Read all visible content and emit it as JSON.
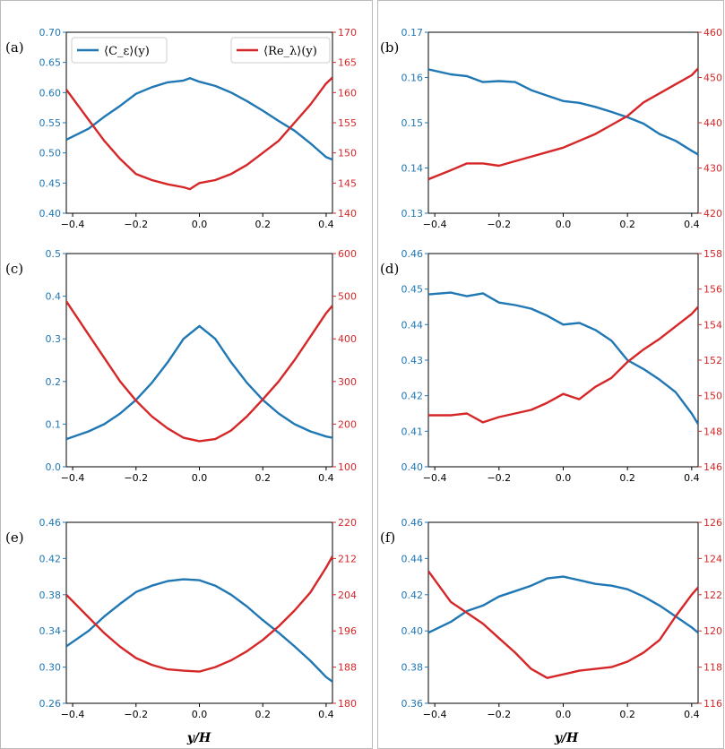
{
  "colors": {
    "left_axis": "#1f77b4",
    "right_axis": "#d62728",
    "frame": "#000000",
    "column_border": "#bbbbbb"
  },
  "legend": {
    "placement": "top",
    "entries": [
      {
        "label": "⟨C_ε⟩(y)",
        "color": "#1f77b4"
      },
      {
        "label": "⟨Re_λ⟩(y)",
        "color": "#d62728"
      }
    ]
  },
  "xlabel": "y/H",
  "chart_data": [
    {
      "type": "line",
      "panel": "(a)",
      "xlim": [
        -0.42,
        0.42
      ],
      "xticks": [
        -0.4,
        -0.2,
        0.0,
        0.2,
        0.4
      ],
      "ylim_left": [
        0.4,
        0.7
      ],
      "yticks_left": [
        0.4,
        0.45,
        0.5,
        0.55,
        0.6,
        0.65,
        0.7
      ],
      "ylim_right": [
        140,
        170
      ],
      "yticks_right": [
        140,
        145,
        150,
        155,
        160,
        165,
        170
      ],
      "series": [
        {
          "name": "⟨C_ε⟩(y)",
          "axis": "left",
          "x": [
            -0.42,
            -0.35,
            -0.3,
            -0.25,
            -0.2,
            -0.15,
            -0.1,
            -0.05,
            -0.03,
            0.0,
            0.05,
            0.1,
            0.15,
            0.2,
            0.25,
            0.3,
            0.35,
            0.4,
            0.42
          ],
          "y": [
            0.522,
            0.54,
            0.56,
            0.578,
            0.598,
            0.609,
            0.617,
            0.62,
            0.624,
            0.618,
            0.611,
            0.6,
            0.586,
            0.57,
            0.553,
            0.537,
            0.516,
            0.493,
            0.489
          ]
        },
        {
          "name": "⟨Re_λ⟩(y)",
          "axis": "right",
          "x": [
            -0.42,
            -0.35,
            -0.3,
            -0.25,
            -0.2,
            -0.15,
            -0.1,
            -0.05,
            -0.03,
            0.0,
            0.05,
            0.1,
            0.15,
            0.2,
            0.25,
            0.3,
            0.35,
            0.4,
            0.42
          ],
          "y": [
            160.5,
            155.5,
            152.0,
            149.0,
            146.5,
            145.5,
            144.8,
            144.3,
            144.0,
            145.0,
            145.5,
            146.5,
            148.0,
            150.0,
            152.0,
            155.0,
            158.0,
            161.5,
            162.5
          ]
        }
      ]
    },
    {
      "type": "line",
      "panel": "(b)",
      "xlim": [
        -0.42,
        0.42
      ],
      "xticks": [
        -0.4,
        -0.2,
        0.0,
        0.2,
        0.4
      ],
      "ylim_left": [
        0.13,
        0.17
      ],
      "yticks_left": [
        0.13,
        0.14,
        0.15,
        0.16,
        0.17
      ],
      "ylim_right": [
        420,
        460
      ],
      "yticks_right": [
        420,
        430,
        440,
        450,
        460
      ],
      "series": [
        {
          "name": "⟨C_ε⟩(y)",
          "axis": "left",
          "x": [
            -0.42,
            -0.35,
            -0.3,
            -0.25,
            -0.2,
            -0.15,
            -0.1,
            -0.05,
            0.0,
            0.05,
            0.1,
            0.15,
            0.2,
            0.25,
            0.3,
            0.35,
            0.4,
            0.42
          ],
          "y": [
            0.1618,
            0.1607,
            0.1603,
            0.159,
            0.1592,
            0.159,
            0.1572,
            0.156,
            0.1548,
            0.1544,
            0.1535,
            0.1524,
            0.1512,
            0.1498,
            0.1475,
            0.146,
            0.1438,
            0.143
          ]
        },
        {
          "name": "⟨Re_λ⟩(y)",
          "axis": "right",
          "x": [
            -0.42,
            -0.35,
            -0.3,
            -0.25,
            -0.2,
            -0.15,
            -0.1,
            -0.05,
            0.0,
            0.05,
            0.1,
            0.15,
            0.2,
            0.25,
            0.3,
            0.35,
            0.4,
            0.42
          ],
          "y": [
            427.5,
            429.5,
            431.0,
            431.0,
            430.5,
            431.5,
            432.5,
            433.5,
            434.5,
            436.0,
            437.5,
            439.5,
            441.5,
            444.5,
            446.5,
            448.5,
            450.5,
            452.0
          ]
        }
      ]
    },
    {
      "type": "line",
      "panel": "(c)",
      "xlim": [
        -0.42,
        0.42
      ],
      "xticks": [
        -0.4,
        -0.2,
        0.0,
        0.2,
        0.4
      ],
      "ylim_left": [
        0.0,
        0.5
      ],
      "yticks_left": [
        0.0,
        0.1,
        0.2,
        0.3,
        0.4,
        0.5
      ],
      "ylim_right": [
        100,
        600
      ],
      "yticks_right": [
        100,
        200,
        300,
        400,
        500,
        600
      ],
      "series": [
        {
          "name": "⟨C_ε⟩(y)",
          "axis": "left",
          "x": [
            -0.42,
            -0.35,
            -0.3,
            -0.25,
            -0.2,
            -0.15,
            -0.1,
            -0.05,
            0.0,
            0.05,
            0.1,
            0.15,
            0.2,
            0.25,
            0.3,
            0.35,
            0.4,
            0.42
          ],
          "y": [
            0.065,
            0.083,
            0.1,
            0.125,
            0.157,
            0.197,
            0.245,
            0.3,
            0.33,
            0.3,
            0.245,
            0.197,
            0.157,
            0.125,
            0.1,
            0.083,
            0.071,
            0.068
          ]
        },
        {
          "name": "⟨Re_λ⟩(y)",
          "axis": "right",
          "x": [
            -0.42,
            -0.35,
            -0.3,
            -0.25,
            -0.2,
            -0.15,
            -0.1,
            -0.05,
            0.0,
            0.05,
            0.1,
            0.15,
            0.2,
            0.25,
            0.3,
            0.35,
            0.4,
            0.42
          ],
          "y": [
            488,
            410,
            355,
            300,
            255,
            218,
            190,
            168,
            160,
            165,
            185,
            218,
            258,
            300,
            350,
            405,
            460,
            478
          ]
        }
      ]
    },
    {
      "type": "line",
      "panel": "(d)",
      "xlim": [
        -0.42,
        0.42
      ],
      "xticks": [
        -0.4,
        -0.2,
        0.0,
        0.2,
        0.4
      ],
      "ylim_left": [
        0.4,
        0.46
      ],
      "yticks_left": [
        0.4,
        0.41,
        0.42,
        0.43,
        0.44,
        0.45,
        0.46
      ],
      "ylim_right": [
        146,
        158
      ],
      "yticks_right": [
        146,
        148,
        150,
        152,
        154,
        156,
        158
      ],
      "series": [
        {
          "name": "⟨C_ε⟩(y)",
          "axis": "left",
          "x": [
            -0.42,
            -0.35,
            -0.3,
            -0.25,
            -0.2,
            -0.15,
            -0.1,
            -0.05,
            0.0,
            0.05,
            0.1,
            0.15,
            0.2,
            0.25,
            0.3,
            0.35,
            0.4,
            0.42
          ],
          "y": [
            0.4485,
            0.449,
            0.448,
            0.4488,
            0.4462,
            0.4455,
            0.4445,
            0.4425,
            0.44,
            0.4405,
            0.4385,
            0.4355,
            0.43,
            0.4275,
            0.4245,
            0.421,
            0.415,
            0.412
          ]
        },
        {
          "name": "⟨Re_λ⟩(y)",
          "axis": "right",
          "x": [
            -0.42,
            -0.35,
            -0.3,
            -0.25,
            -0.2,
            -0.15,
            -0.1,
            -0.05,
            0.0,
            0.05,
            0.1,
            0.15,
            0.2,
            0.25,
            0.3,
            0.35,
            0.4,
            0.42
          ],
          "y": [
            148.9,
            148.9,
            149.0,
            148.5,
            148.8,
            149.0,
            149.2,
            149.6,
            150.1,
            149.8,
            150.5,
            151.0,
            151.9,
            152.6,
            153.2,
            153.9,
            154.6,
            155.0
          ]
        }
      ]
    },
    {
      "type": "line",
      "panel": "(e)",
      "xlim": [
        -0.42,
        0.42
      ],
      "xticks": [
        -0.4,
        -0.2,
        0.0,
        0.2,
        0.4
      ],
      "ylim_left": [
        0.26,
        0.46
      ],
      "yticks_left": [
        0.26,
        0.3,
        0.34,
        0.38,
        0.42,
        0.46
      ],
      "ylim_right": [
        180,
        220
      ],
      "yticks_right": [
        180,
        188,
        196,
        204,
        212,
        220
      ],
      "series": [
        {
          "name": "⟨C_ε⟩(y)",
          "axis": "left",
          "x": [
            -0.42,
            -0.35,
            -0.3,
            -0.25,
            -0.2,
            -0.15,
            -0.1,
            -0.05,
            0.0,
            0.05,
            0.1,
            0.15,
            0.2,
            0.25,
            0.3,
            0.35,
            0.4,
            0.42
          ],
          "y": [
            0.323,
            0.34,
            0.356,
            0.37,
            0.383,
            0.39,
            0.395,
            0.397,
            0.396,
            0.39,
            0.38,
            0.367,
            0.352,
            0.338,
            0.323,
            0.307,
            0.289,
            0.284
          ]
        },
        {
          "name": "⟨Re_λ⟩(y)",
          "axis": "right",
          "x": [
            -0.42,
            -0.35,
            -0.3,
            -0.25,
            -0.2,
            -0.15,
            -0.1,
            -0.05,
            0.0,
            0.05,
            0.1,
            0.15,
            0.2,
            0.25,
            0.3,
            0.35,
            0.4,
            0.42
          ],
          "y": [
            204.0,
            199.0,
            195.5,
            192.5,
            190.0,
            188.5,
            187.5,
            187.2,
            187.0,
            188.0,
            189.5,
            191.5,
            194.0,
            197.0,
            200.5,
            204.5,
            210.0,
            212.5
          ]
        }
      ]
    },
    {
      "type": "line",
      "panel": "(f)",
      "xlim": [
        -0.42,
        0.42
      ],
      "xticks": [
        -0.4,
        -0.2,
        0.0,
        0.2,
        0.4
      ],
      "ylim_left": [
        0.36,
        0.46
      ],
      "yticks_left": [
        0.36,
        0.38,
        0.4,
        0.42,
        0.44,
        0.46
      ],
      "ylim_right": [
        116,
        126
      ],
      "yticks_right": [
        116,
        118,
        120,
        122,
        124,
        126
      ],
      "series": [
        {
          "name": "⟨C_ε⟩(y)",
          "axis": "left",
          "x": [
            -0.42,
            -0.35,
            -0.3,
            -0.25,
            -0.2,
            -0.15,
            -0.1,
            -0.05,
            0.0,
            0.05,
            0.1,
            0.15,
            0.2,
            0.25,
            0.3,
            0.35,
            0.4,
            0.42
          ],
          "y": [
            0.399,
            0.405,
            0.411,
            0.414,
            0.419,
            0.422,
            0.425,
            0.429,
            0.43,
            0.428,
            0.426,
            0.425,
            0.423,
            0.419,
            0.414,
            0.408,
            0.402,
            0.399
          ]
        },
        {
          "name": "⟨Re_λ⟩(y)",
          "axis": "right",
          "x": [
            -0.42,
            -0.35,
            -0.3,
            -0.25,
            -0.2,
            -0.15,
            -0.1,
            -0.05,
            0.0,
            0.05,
            0.1,
            0.15,
            0.2,
            0.25,
            0.3,
            0.35,
            0.4,
            0.42
          ],
          "y": [
            123.3,
            121.6,
            121.0,
            120.4,
            119.6,
            118.8,
            117.9,
            117.4,
            117.6,
            117.8,
            117.9,
            118.0,
            118.3,
            118.8,
            119.5,
            120.8,
            122.0,
            122.4
          ]
        }
      ]
    }
  ]
}
